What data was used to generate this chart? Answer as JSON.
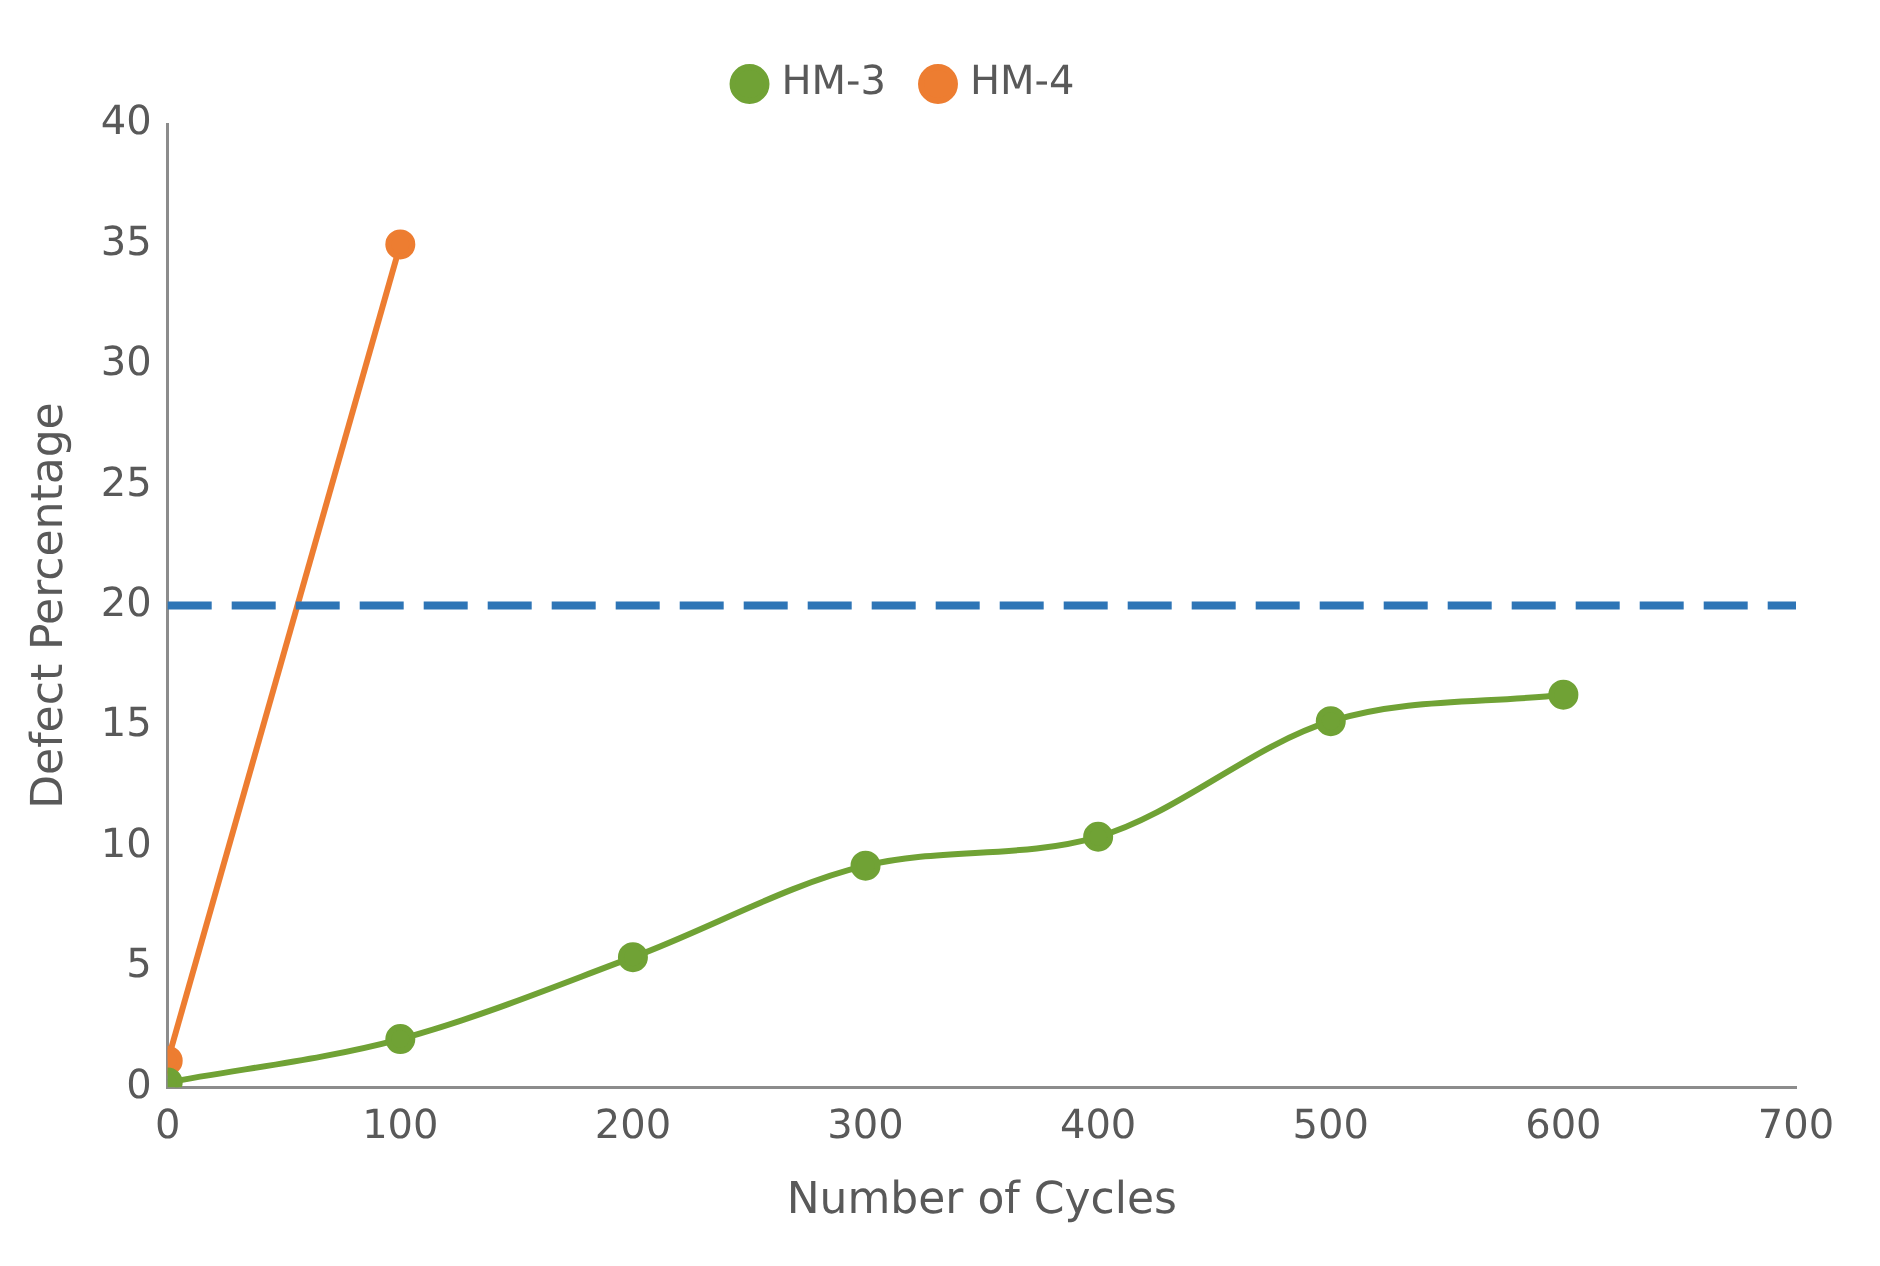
{
  "chart_data": {
    "type": "line",
    "xlabel": "Number of Cycles",
    "ylabel": "Defect Percentage",
    "xlim": [
      0,
      700
    ],
    "xticks": [
      0,
      100,
      200,
      300,
      400,
      500,
      600,
      700
    ],
    "ylim": [
      0,
      40
    ],
    "yticks": [
      0,
      5,
      10,
      15,
      20,
      25,
      30,
      35,
      40
    ],
    "grid": false,
    "legend": "top",
    "marker": "circle",
    "line_style": "solid",
    "series": [
      {
        "name": "HM-3",
        "color": "#70a235",
        "x": [
          0,
          100,
          200,
          300,
          400,
          500,
          600
        ],
        "values": [
          0.2,
          2.0,
          5.4,
          9.2,
          10.4,
          15.2,
          16.3
        ]
      },
      {
        "name": "HM-4",
        "color": "#ed7d31",
        "x": [
          0,
          100
        ],
        "values": [
          1.1,
          35
        ]
      }
    ],
    "ref_lines": [
      {
        "axis": "y",
        "value": 20,
        "color": "#2e75b6",
        "line_style": "dashed"
      }
    ]
  }
}
